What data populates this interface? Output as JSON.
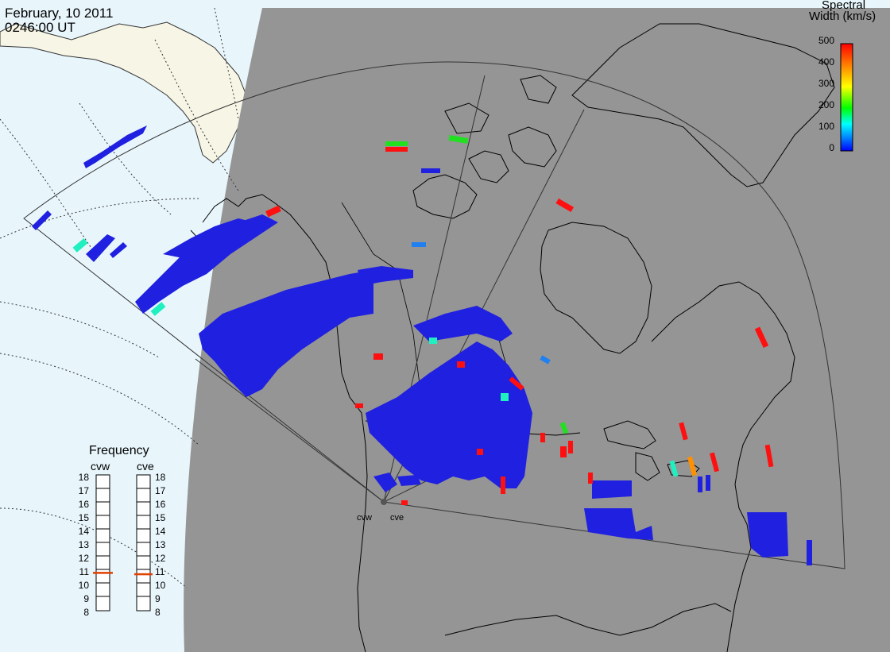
{
  "header": {
    "date": "February, 10 2011",
    "time": "0246:00 UT"
  },
  "colorbar": {
    "title_line1": "Spectral",
    "title_line2": "Width (km/s)",
    "ticks": [
      "500",
      "400",
      "300",
      "200",
      "100",
      "0"
    ],
    "colors": [
      "#ff0000",
      "#ff8000",
      "#ffff00",
      "#00ff00",
      "#00ffff",
      "#0080ff",
      "#0000ff"
    ]
  },
  "frequency": {
    "title": "Frequency",
    "radars": [
      {
        "name": "cvw",
        "value_mhz": 10.8
      },
      {
        "name": "cve",
        "value_mhz": 10.7
      }
    ],
    "ticks": [
      "18",
      "17",
      "16",
      "15",
      "14",
      "13",
      "12",
      "11",
      "10",
      "9",
      "8"
    ],
    "marker_color": "#e04000"
  },
  "radar_sites": {
    "west_label": "cvw",
    "east_label": "cve"
  },
  "colors": {
    "ocean": "#e8f6fc",
    "night": "#959595",
    "land_day": "#f7f5e6",
    "echo_blue": "#2020e0",
    "echo_red": "#ff1010",
    "echo_green": "#20e020",
    "echo_cyan": "#20f0c0",
    "echo_orange": "#ff9000",
    "echo_lightblue": "#2080f0"
  }
}
